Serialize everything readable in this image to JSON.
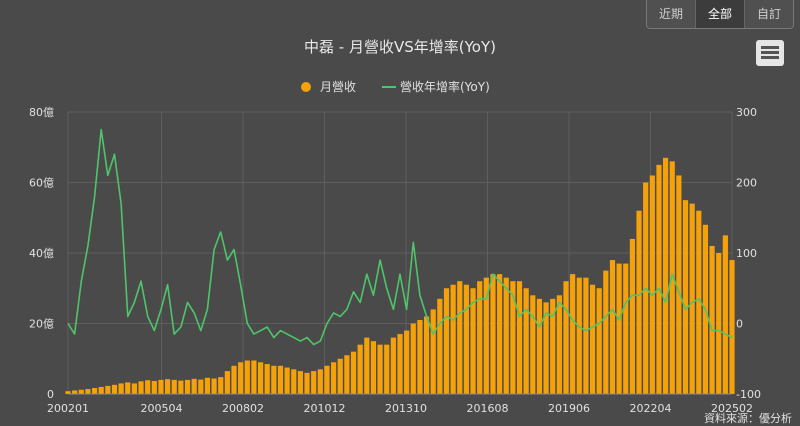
{
  "range_buttons": [
    {
      "label": "近期",
      "active": false
    },
    {
      "label": "全部",
      "active": true
    },
    {
      "label": "自訂",
      "active": false
    }
  ],
  "source_label": "資料來源：優分析",
  "colors": {
    "bar": "#f5a10a",
    "line": "#4fc46a",
    "background": "#4a4a4a",
    "grid": "#5e5e5e",
    "text": "#e0e0e0"
  },
  "chart_data": {
    "type": "bar",
    "title": "中磊 - 月營收VS年增率(YoY)",
    "legend_position": "top-center",
    "grid": true,
    "x_ticks": [
      "200201",
      "200504",
      "200802",
      "201012",
      "201310",
      "201608",
      "201906",
      "202204",
      "202502"
    ],
    "x_range": [
      "2002-01",
      "2025-02"
    ],
    "y_left": {
      "ticks": [
        "0",
        "20億",
        "40億",
        "60億",
        "80億"
      ],
      "range": [
        0,
        80
      ],
      "unit": "億"
    },
    "y_right": {
      "ticks": [
        "-100",
        "0",
        "100",
        "200",
        "300"
      ],
      "range": [
        -100,
        300
      ]
    },
    "series": [
      {
        "name": "月營收",
        "kind": "bar",
        "axis": "left",
        "start": "2002-01",
        "values": [
          0.8,
          1.0,
          1.2,
          1.4,
          1.7,
          2.0,
          2.3,
          2.6,
          3.0,
          3.3,
          3.0,
          3.6,
          3.9,
          3.7,
          4.0,
          4.2,
          4.0,
          3.8,
          4.0,
          4.3,
          4.1,
          4.6,
          4.4,
          4.8,
          6.5,
          8.0,
          9.0,
          9.5,
          9.5,
          9.0,
          8.5,
          8.0,
          8.0,
          7.5,
          7.0,
          6.5,
          6.0,
          6.5,
          7.0,
          8.0,
          9.0,
          10.0,
          11.0,
          12.0,
          14.0,
          16.0,
          15.0,
          14.0,
          14.0,
          16.0,
          17.0,
          18.0,
          20.0,
          21.0,
          22.0,
          24.0,
          27.0,
          30.0,
          31.0,
          32.0,
          31.0,
          30.0,
          32.0,
          33.0,
          34.0,
          34.0,
          33.0,
          32.0,
          32.0,
          30.0,
          28.0,
          27.0,
          26.0,
          27.0,
          28.0,
          32.0,
          34.0,
          33.0,
          33.0,
          31.0,
          30.0,
          35.0,
          38.0,
          37.0,
          37.0,
          44.0,
          52.0,
          60.0,
          62.0,
          65.0,
          67.0,
          66.0,
          62.0,
          55.0,
          54.0,
          52.0,
          48.0,
          42.0,
          40.0,
          45.0,
          38.0
        ]
      },
      {
        "name": "營收年增率(YoY)",
        "kind": "line",
        "axis": "right",
        "start": "2002-01",
        "values": [
          0,
          -15,
          60,
          110,
          180,
          275,
          210,
          240,
          170,
          10,
          30,
          60,
          10,
          -10,
          20,
          55,
          -15,
          -5,
          30,
          15,
          -10,
          20,
          105,
          130,
          90,
          105,
          55,
          0,
          -15,
          -10,
          -5,
          -20,
          -10,
          -15,
          -20,
          -25,
          -20,
          -30,
          -25,
          0,
          15,
          10,
          20,
          45,
          30,
          70,
          40,
          90,
          50,
          20,
          70,
          20,
          115,
          40,
          10,
          -15,
          0,
          10,
          5,
          15,
          20,
          30,
          35,
          35,
          70,
          60,
          50,
          40,
          10,
          20,
          10,
          -5,
          15,
          10,
          30,
          20,
          5,
          -5,
          -10,
          -5,
          0,
          10,
          20,
          5,
          30,
          40,
          40,
          50,
          40,
          50,
          30,
          70,
          45,
          20,
          30,
          35,
          20,
          -10,
          -10,
          -15,
          -20
        ]
      }
    ]
  }
}
